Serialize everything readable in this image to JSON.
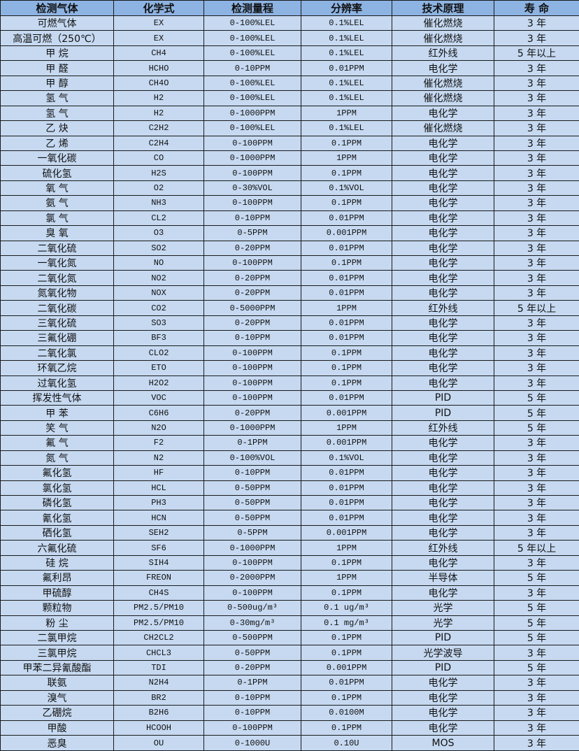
{
  "colors": {
    "header_bg": "#8db3e2",
    "cell_bg": "#c6d9f1",
    "border": "#1a1a1a"
  },
  "table": {
    "headers": [
      "检测气体",
      "化学式",
      "检测量程",
      "分辨率",
      "技术原理",
      "寿 命"
    ],
    "rows": [
      [
        "可燃气体",
        "EX",
        "0-100%LEL",
        "0.1%LEL",
        "催化燃烧",
        "3 年"
      ],
      [
        "高温可燃（250℃）",
        "EX",
        "0-100%LEL",
        "0.1%LEL",
        "催化燃烧",
        "3 年"
      ],
      [
        "甲 烷",
        "CH4",
        "0-100%LEL",
        "0.1%LEL",
        "红外线",
        "5 年以上"
      ],
      [
        "甲 醛",
        "HCHO",
        "0-10PPM",
        "0.01PPM",
        "电化学",
        "3 年"
      ],
      [
        "甲 醇",
        "CH4O",
        "0-100%LEL",
        "0.1%LEL",
        "催化燃烧",
        "3 年"
      ],
      [
        "氢 气",
        "H2",
        "0-100%LEL",
        "0.1%LEL",
        "催化燃烧",
        "3 年"
      ],
      [
        "氢 气",
        "H2",
        "0-1000PPM",
        "1PPM",
        "电化学",
        "3 年"
      ],
      [
        "乙 炔",
        "C2H2",
        "0-100%LEL",
        "0.1%LEL",
        "催化燃烧",
        "3 年"
      ],
      [
        "乙 烯",
        "C2H4",
        "0-100PPM",
        "0.1PPM",
        "电化学",
        "3 年"
      ],
      [
        "一氧化碳",
        "CO",
        "0-1000PPM",
        "1PPM",
        "电化学",
        "3 年"
      ],
      [
        "硫化氢",
        "H2S",
        "0-100PPM",
        "0.1PPM",
        "电化学",
        "3 年"
      ],
      [
        "氧 气",
        "O2",
        "0-30%VOL",
        "0.1%VOL",
        "电化学",
        "3 年"
      ],
      [
        "氨 气",
        "NH3",
        "0-100PPM",
        "0.1PPM",
        "电化学",
        "3 年"
      ],
      [
        "氯 气",
        "CL2",
        "0-10PPM",
        "0.01PPM",
        "电化学",
        "3 年"
      ],
      [
        "臭 氧",
        "O3",
        "0-5PPM",
        "0.001PPM",
        "电化学",
        "3 年"
      ],
      [
        "二氧化硫",
        "SO2",
        "0-20PPM",
        "0.01PPM",
        "电化学",
        "3 年"
      ],
      [
        "一氧化氮",
        "NO",
        "0-100PPM",
        "0.1PPM",
        "电化学",
        "3 年"
      ],
      [
        "二氧化氮",
        "NO2",
        "0-20PPM",
        "0.01PPM",
        "电化学",
        "3 年"
      ],
      [
        "氮氧化物",
        "NOX",
        "0-20PPM",
        "0.01PPM",
        "电化学",
        "3 年"
      ],
      [
        "二氧化碳",
        "CO2",
        "0-5000PPM",
        "1PPM",
        "红外线",
        "5 年以上"
      ],
      [
        "三氧化硫",
        "SO3",
        "0-20PPM",
        "0.01PPM",
        "电化学",
        "3 年"
      ],
      [
        "三氟化硼",
        "BF3",
        "0-10PPM",
        "0.01PPM",
        "电化学",
        "3 年"
      ],
      [
        "二氧化氯",
        "CLO2",
        "0-100PPM",
        "0.1PPM",
        "电化学",
        "3 年"
      ],
      [
        "环氧乙烷",
        "ETO",
        "0-100PPM",
        "0.1PPM",
        "电化学",
        "3 年"
      ],
      [
        "过氧化氢",
        "H2O2",
        "0-100PPM",
        "0.1PPM",
        "电化学",
        "3 年"
      ],
      [
        "挥发性气体",
        "VOC",
        "0-100PPM",
        "0.01PPM",
        "PID",
        "5 年"
      ],
      [
        "甲 苯",
        "C6H6",
        "0-20PPM",
        "0.001PPM",
        "PID",
        "5 年"
      ],
      [
        "笑 气",
        "N2O",
        "0-1000PPM",
        "1PPM",
        "红外线",
        "5 年"
      ],
      [
        "氟 气",
        "F2",
        "0-1PPM",
        "0.001PPM",
        "电化学",
        "3 年"
      ],
      [
        "氮 气",
        "N2",
        "0-100%VOL",
        "0.1%VOL",
        "电化学",
        "3 年"
      ],
      [
        "氟化氢",
        "HF",
        "0-10PPM",
        "0.01PPM",
        "电化学",
        "3 年"
      ],
      [
        "氯化氢",
        "HCL",
        "0-50PPM",
        "0.01PPM",
        "电化学",
        "3 年"
      ],
      [
        "磷化氢",
        "PH3",
        "0-50PPM",
        "0.01PPM",
        "电化学",
        "3 年"
      ],
      [
        "氰化氢",
        "HCN",
        "0-50PPM",
        "0.01PPM",
        "电化学",
        "3 年"
      ],
      [
        "硒化氢",
        "SEH2",
        "0-5PPM",
        "0.001PPM",
        "电化学",
        "3 年"
      ],
      [
        "六氟化硫",
        "SF6",
        "0-1000PPM",
        "1PPM",
        "红外线",
        "5 年以上"
      ],
      [
        "硅 烷",
        "SIH4",
        "0-100PPM",
        "0.1PPM",
        "电化学",
        "3 年"
      ],
      [
        "氟利昂",
        "FREON",
        "0-2000PPM",
        "1PPM",
        "半导体",
        "5 年"
      ],
      [
        "甲硫醇",
        "CH4S",
        "0-100PPM",
        "0.1PPM",
        "电化学",
        "3 年"
      ],
      [
        "颗粒物",
        "PM2.5/PM10",
        "0-500ug/m³",
        "0.1 ug/m³",
        "光学",
        "5 年"
      ],
      [
        "粉 尘",
        "PM2.5/PM10",
        "0-30mg/m³",
        "0.1 mg/m³",
        "光学",
        "5 年"
      ],
      [
        "二氯甲烷",
        "CH2CL2",
        "0-500PPM",
        "0.1PPM",
        "PID",
        "5 年"
      ],
      [
        "三氯甲烷",
        "CHCL3",
        "0-50PPM",
        "0.1PPM",
        "光学波导",
        "3 年"
      ],
      [
        "甲苯二异氰酸酯",
        "TDI",
        "0-20PPM",
        "0.001PPM",
        "PID",
        "5 年"
      ],
      [
        "联氨",
        "N2H4",
        "0-1PPM",
        "0.01PPM",
        "电化学",
        "3 年"
      ],
      [
        "溴气",
        "BR2",
        "0-10PPM",
        "0.1PPM",
        "电化学",
        "3 年"
      ],
      [
        "乙硼烷",
        "B2H6",
        "0-10PPM",
        "0.0100M",
        "电化学",
        "3 年"
      ],
      [
        "甲酸",
        "HCOOH",
        "0-100PPM",
        "0.1PPM",
        "电化学",
        "3 年"
      ],
      [
        "恶臭",
        "OU",
        "0-1000U",
        "0.10U",
        "MOS",
        "3 年"
      ]
    ]
  }
}
